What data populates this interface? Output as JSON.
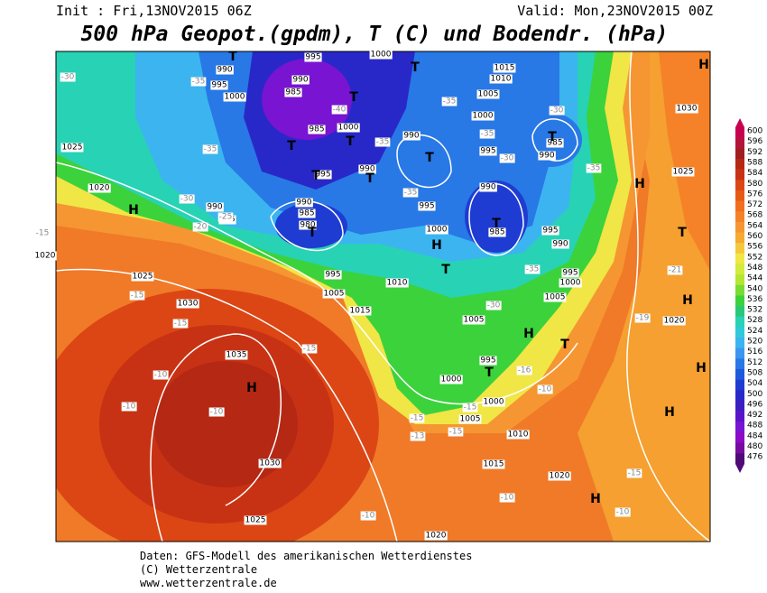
{
  "header": {
    "init": "Init : Fri,13NOV2015 06Z",
    "valid": "Valid: Mon,23NOV2015 00Z",
    "title": "500 hPa Geopot.(gpdm), T (C) und Bodendr. (hPa)"
  },
  "colorbar": {
    "ticks": [
      600,
      596,
      592,
      588,
      584,
      580,
      576,
      572,
      568,
      564,
      560,
      556,
      552,
      548,
      544,
      540,
      536,
      532,
      528,
      524,
      520,
      516,
      512,
      508,
      504,
      500,
      496,
      492,
      488,
      484,
      480,
      476
    ],
    "colors": [
      "#c80050",
      "#b4143c",
      "#a01e1e",
      "#b42814",
      "#c83214",
      "#dc4614",
      "#e65a14",
      "#f06e1e",
      "#f58228",
      "#f59632",
      "#f5aa32",
      "#f5c83c",
      "#f0e646",
      "#d2eb3c",
      "#b4e632",
      "#78dc32",
      "#3cd23c",
      "#28c878",
      "#28d2b4",
      "#32c8dc",
      "#3cb4f0",
      "#3c96f0",
      "#2878e6",
      "#1e5adc",
      "#1e3cd2",
      "#2828c8",
      "#3c1ebe",
      "#5a14c8",
      "#7814d2",
      "#8c0ac8",
      "#780aa0",
      "#500a78"
    ]
  },
  "map": {
    "pressure_labels": [
      "1025",
      "1020",
      "1020",
      "1025",
      "1030",
      "1035",
      "1030",
      "1025",
      "1020",
      "1015",
      "1010",
      "1005",
      "1000",
      "1000",
      "995",
      "1005",
      "1015",
      "1005",
      "995",
      "1010",
      "1000",
      "995",
      "990",
      "980",
      "985",
      "990",
      "985",
      "990",
      "995",
      "985",
      "1000",
      "990",
      "1000",
      "995",
      "990",
      "985",
      "990",
      "995",
      "1000",
      "1015",
      "1010",
      "1005",
      "1000",
      "995",
      "990",
      "985",
      "990",
      "995",
      "1000",
      "995",
      "1005",
      "985",
      "990",
      "1020",
      "1025",
      "1030",
      "1020"
    ],
    "temperature_labels": [
      "-30",
      "-35",
      "-35",
      "-30",
      "-25",
      "-20",
      "-15",
      "-15",
      "-15",
      "-15",
      "-10",
      "-10",
      "-10",
      "-10",
      "-10",
      "-15",
      "-10",
      "-15",
      "-15",
      "-13",
      "-15",
      "-16",
      "-10",
      "-19",
      "-21",
      "-35",
      "-40",
      "-35",
      "-35",
      "-35",
      "-30",
      "-30",
      "-35",
      "-30",
      "-35"
    ],
    "centers": [
      "H",
      "H",
      "H",
      "H",
      "H",
      "H",
      "H",
      "H",
      "H",
      "H",
      "T",
      "T",
      "T",
      "T",
      "T",
      "T",
      "T",
      "T",
      "T",
      "T",
      "T",
      "T",
      "T",
      "T",
      "T"
    ]
  },
  "footer": {
    "lines": [
      "Daten: GFS-Modell des amerikanischen Wetterdienstes",
      "(C) Wetterzentrale",
      "www.wetterzentrale.de"
    ]
  }
}
